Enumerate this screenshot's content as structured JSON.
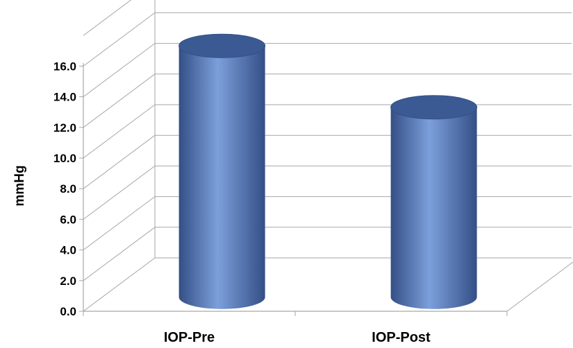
{
  "chart_data": {
    "type": "bar",
    "style": "3d-cylinder",
    "categories": [
      "IOP-Pre",
      "IOP-Post"
    ],
    "values": [
      16.4,
      12.4
    ],
    "ylabel": "mmHg",
    "ylim": [
      0,
      16
    ],
    "yticks": [
      "0.0",
      "2.0",
      "4.0",
      "6.0",
      "8.0",
      "10.0",
      "12.0",
      "14.0",
      "16.0"
    ],
    "grid": true,
    "legend": "none",
    "colors": {
      "bar": "#5577BB",
      "bar_light": "#7C9FDB",
      "bar_dark": "#344F86",
      "bar_top": "#3B5A93",
      "grid": "#A6A6A6"
    }
  }
}
